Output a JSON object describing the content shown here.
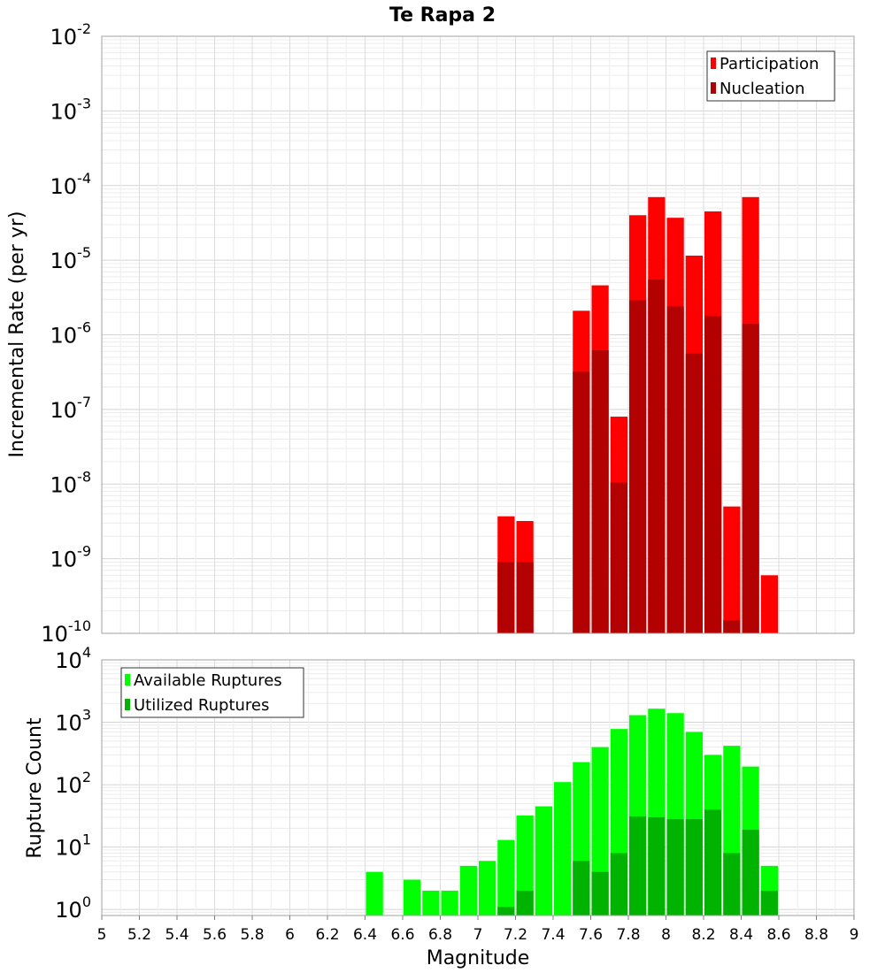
{
  "chart_data": [
    {
      "type": "bar",
      "title": "Te Rapa 2",
      "ylabel": "Incremental Rate (per yr)",
      "xlabel": "",
      "y_scale": "log",
      "ylim": [
        1e-10,
        0.01
      ],
      "xlim": [
        5,
        9
      ],
      "grid": true,
      "legend_position": "top-right",
      "bin_width": 0.1,
      "x": [
        7.15,
        7.25,
        7.55,
        7.65,
        7.75,
        7.85,
        7.95,
        8.05,
        8.15,
        8.25,
        8.35,
        8.45,
        8.55
      ],
      "series": [
        {
          "name": "Participation",
          "color": "#ff0000",
          "values": [
            3.7e-09,
            3.2e-09,
            2.1e-06,
            4.6e-06,
            8e-08,
            4e-05,
            7e-05,
            3.7e-05,
            1.15e-05,
            4.5e-05,
            5e-09,
            7e-05,
            6e-10
          ]
        },
        {
          "name": "Nucleation",
          "color": "#b30000",
          "values": [
            9e-10,
            9e-10,
            3.2e-07,
            6.2e-07,
            1.05e-08,
            2.9e-06,
            5.5e-06,
            2.4e-06,
            5.6e-07,
            1.8e-06,
            1.5e-10,
            1.4e-06,
            null
          ]
        }
      ]
    },
    {
      "type": "bar",
      "title": "",
      "ylabel": "Rupture Count",
      "xlabel": "Magnitude",
      "y_scale": "log",
      "ylim": [
        0.8,
        10000
      ],
      "xlim": [
        5,
        9
      ],
      "grid": true,
      "legend_position": "top-left",
      "bin_width": 0.1,
      "x": [
        6.45,
        6.65,
        6.75,
        6.85,
        6.95,
        7.05,
        7.15,
        7.25,
        7.35,
        7.45,
        7.55,
        7.65,
        7.75,
        7.85,
        7.95,
        8.05,
        8.15,
        8.25,
        8.35,
        8.45,
        8.55
      ],
      "series": [
        {
          "name": "Available Ruptures",
          "color": "#00ff00",
          "values": [
            4,
            3,
            2,
            2,
            5,
            6,
            13,
            32,
            45,
            110,
            230,
            400,
            780,
            1300,
            1650,
            1400,
            700,
            300,
            420,
            195,
            5
          ]
        },
        {
          "name": "Utilized Ruptures",
          "color": "#00b300",
          "values": [
            null,
            null,
            null,
            null,
            null,
            null,
            1.1,
            2,
            null,
            null,
            6,
            4,
            8,
            31,
            30,
            28,
            28,
            40,
            8,
            19,
            2
          ]
        }
      ],
      "x_ticks": [
        "5",
        "5.2",
        "5.4",
        "5.6",
        "5.8",
        "6",
        "6.2",
        "6.4",
        "6.6",
        "6.8",
        "7",
        "7.2",
        "7.4",
        "7.6",
        "7.8",
        "8",
        "8.2",
        "8.4",
        "8.6",
        "8.8",
        "9"
      ]
    }
  ]
}
